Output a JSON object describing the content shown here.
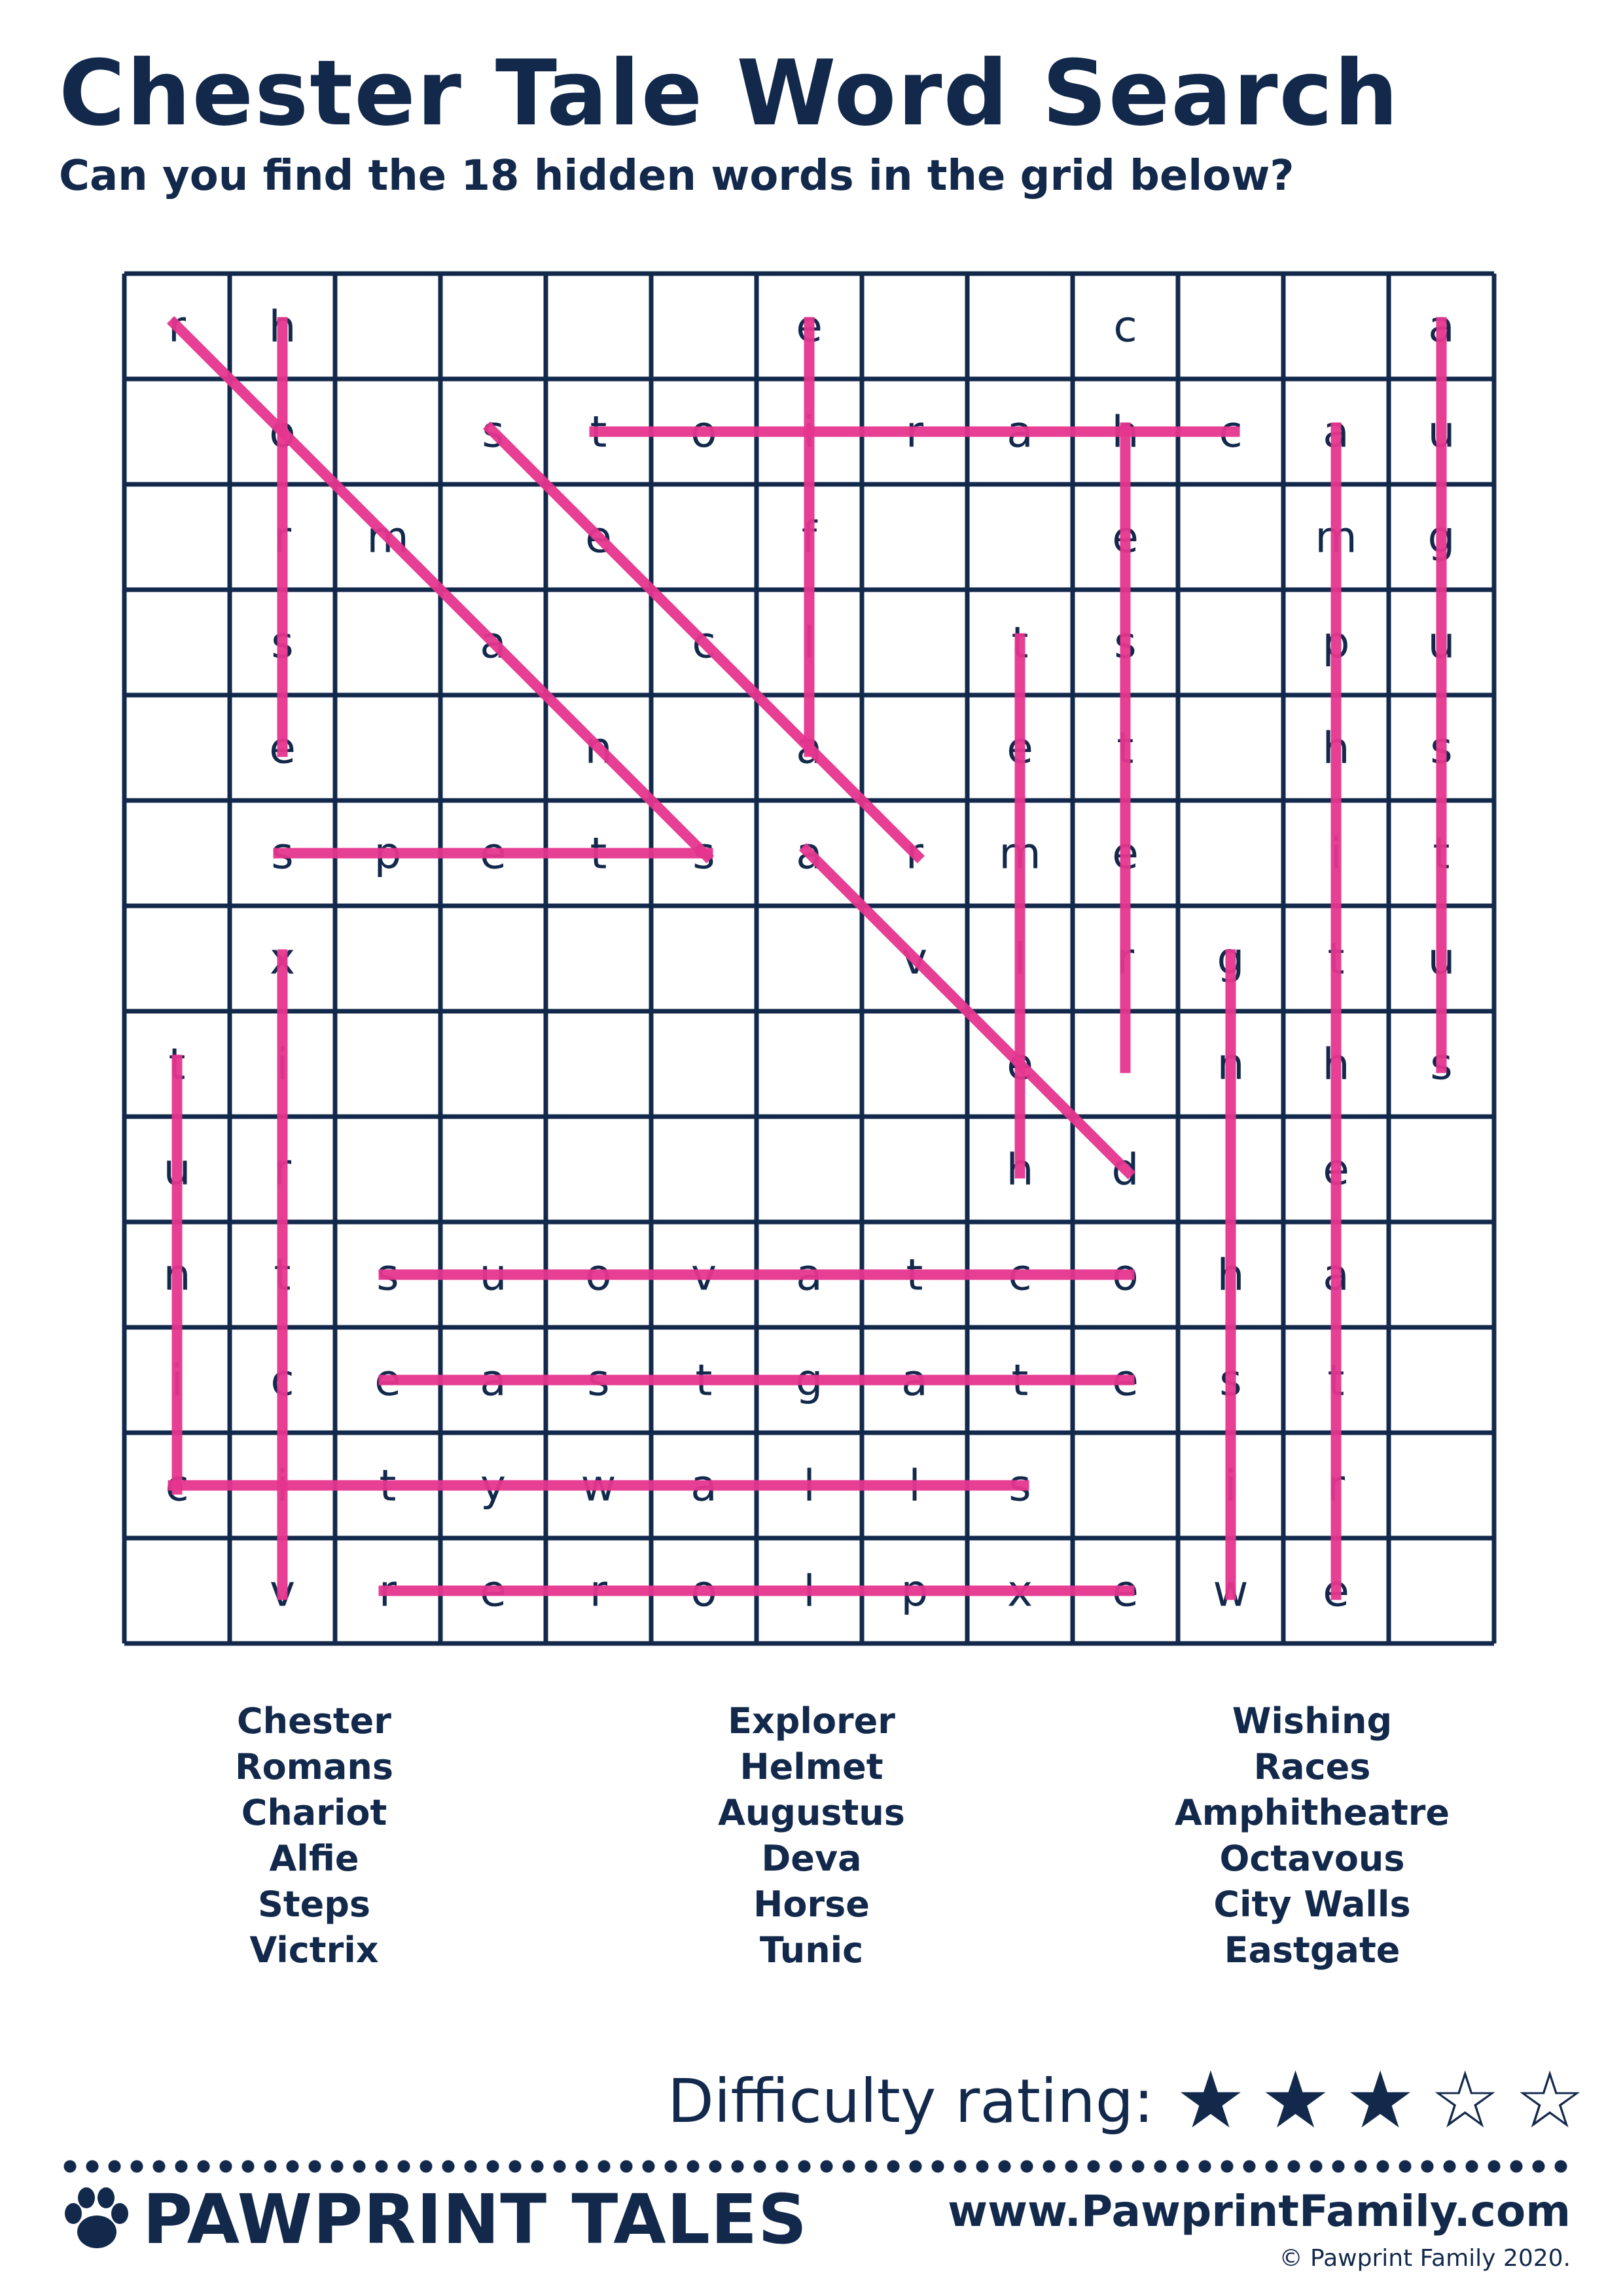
{
  "header": {
    "title": "Chester Tale Word Search",
    "subtitle": "Can you find the 18 hidden words in the grid below?"
  },
  "grid": {
    "rows": [
      [
        "r",
        "h",
        "",
        "",
        "",
        "",
        "e",
        "",
        "",
        "c",
        "",
        "",
        "a"
      ],
      [
        "",
        "o",
        "",
        "s",
        "t",
        "o",
        "i",
        "r",
        "a",
        "h",
        "c",
        "a",
        "u"
      ],
      [
        "",
        "r",
        "m",
        "",
        "e",
        "",
        "f",
        "",
        "",
        "e",
        "",
        "m",
        "g"
      ],
      [
        "",
        "s",
        "",
        "a",
        "",
        "c",
        "l",
        "",
        "t",
        "s",
        "",
        "p",
        "u"
      ],
      [
        "",
        "e",
        "",
        "",
        "n",
        "",
        "a",
        "",
        "e",
        "t",
        "",
        "h",
        "s"
      ],
      [
        "",
        "s",
        "p",
        "e",
        "t",
        "s",
        "a",
        "r",
        "m",
        "e",
        "",
        "i",
        "t"
      ],
      [
        "",
        "x",
        "",
        "",
        "",
        "",
        "",
        "v",
        "l",
        "r",
        "g",
        "t",
        "u"
      ],
      [
        "t",
        "i",
        "",
        "",
        "",
        "",
        "",
        "",
        "e",
        "",
        "n",
        "h",
        "s"
      ],
      [
        "u",
        "r",
        "",
        "",
        "",
        "",
        "",
        "",
        "h",
        "d",
        "",
        "e",
        ""
      ],
      [
        "n",
        "t",
        "s",
        "u",
        "o",
        "v",
        "a",
        "t",
        "c",
        "o",
        "h",
        "a",
        ""
      ],
      [
        "i",
        "c",
        "e",
        "a",
        "s",
        "t",
        "g",
        "a",
        "t",
        "e",
        "s",
        "t",
        ""
      ],
      [
        "c",
        "i",
        "t",
        "y",
        "w",
        "a",
        "l",
        "l",
        "s",
        "",
        "i",
        "r",
        ""
      ],
      [
        "",
        "v",
        "r",
        "e",
        "r",
        "o",
        "l",
        "p",
        "x",
        "e",
        "w",
        "e",
        ""
      ]
    ]
  },
  "highlight_color": "#e5358f",
  "found_words": [
    {
      "word": "Chester",
      "from": [
        1,
        9
      ],
      "to": [
        7,
        9
      ]
    },
    {
      "word": "Romans",
      "from": [
        0,
        0
      ],
      "to": [
        5,
        5
      ]
    },
    {
      "word": "Chariot",
      "from": [
        1,
        10
      ],
      "to": [
        1,
        4
      ]
    },
    {
      "word": "Alfie",
      "from": [
        4,
        6
      ],
      "to": [
        0,
        6
      ]
    },
    {
      "word": "Steps",
      "from": [
        5,
        5
      ],
      "to": [
        5,
        1
      ]
    },
    {
      "word": "Victrix",
      "from": [
        12,
        1
      ],
      "to": [
        6,
        1
      ]
    },
    {
      "word": "Explorer",
      "from": [
        12,
        9
      ],
      "to": [
        12,
        2
      ]
    },
    {
      "word": "Helmet",
      "from": [
        8,
        8
      ],
      "to": [
        3,
        8
      ]
    },
    {
      "word": "Augustus",
      "from": [
        0,
        12
      ],
      "to": [
        7,
        12
      ]
    },
    {
      "word": "Deva",
      "from": [
        8,
        9
      ],
      "to": [
        5,
        6
      ]
    },
    {
      "word": "Horse",
      "from": [
        0,
        1
      ],
      "to": [
        4,
        1
      ]
    },
    {
      "word": "Tunic",
      "from": [
        7,
        0
      ],
      "to": [
        11,
        0
      ]
    },
    {
      "word": "Wishing",
      "from": [
        12,
        10
      ],
      "to": [
        6,
        10
      ]
    },
    {
      "word": "Races",
      "from": [
        5,
        7
      ],
      "to": [
        1,
        3
      ]
    },
    {
      "word": "Amphitheatre",
      "from": [
        1,
        11
      ],
      "to": [
        12,
        11
      ]
    },
    {
      "word": "Octavous",
      "from": [
        9,
        9
      ],
      "to": [
        9,
        2
      ]
    },
    {
      "word": "City Walls",
      "from": [
        11,
        0
      ],
      "to": [
        11,
        8
      ]
    },
    {
      "word": "Eastgate",
      "from": [
        10,
        2
      ],
      "to": [
        10,
        9
      ]
    }
  ],
  "word_list": {
    "columns": [
      [
        "Chester",
        "Romans",
        "Chariot",
        "Alfie",
        "Steps",
        "Victrix"
      ],
      [
        "Explorer",
        "Helmet",
        "Augustus",
        "Deva",
        "Horse",
        "Tunic"
      ],
      [
        "Wishing",
        "Races",
        "Amphitheatre",
        "Octavous",
        "City Walls",
        "Eastgate"
      ]
    ]
  },
  "difficulty": {
    "label": "Difficulty rating:",
    "filled": 3,
    "total": 5
  },
  "footer": {
    "brand": "PAWPRINT TALES",
    "website": "www.PawprintFamily.com",
    "copyright": "© Pawprint Family 2020."
  }
}
